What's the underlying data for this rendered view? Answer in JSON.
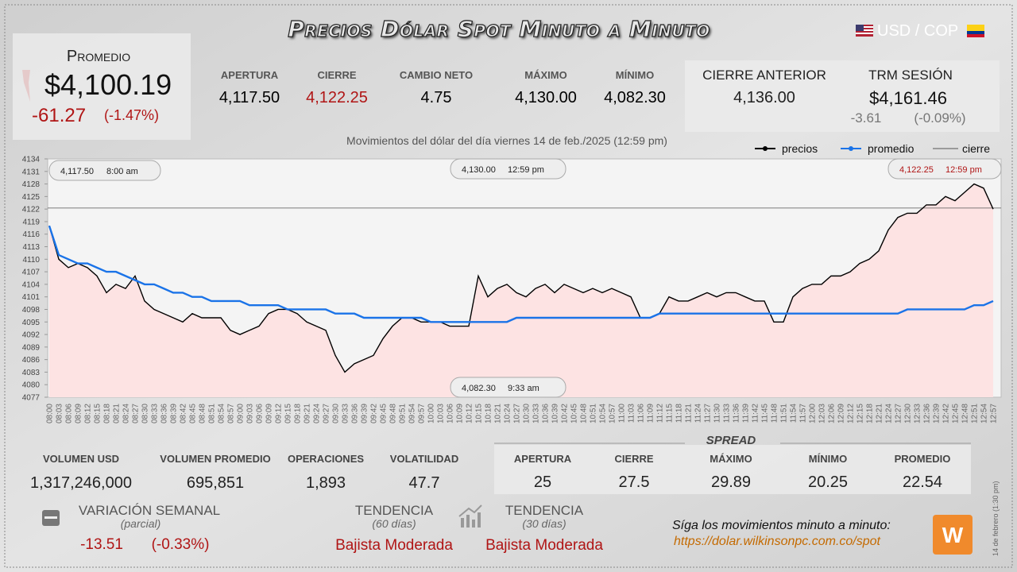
{
  "header": {
    "title": "Precios Dólar Spot Minuto a Minuto",
    "pair": "USD / COP"
  },
  "promedio": {
    "label": "Promedio",
    "value": "$4,100.19",
    "change": "-61.27",
    "change_pct": "(-1.47%)"
  },
  "session": [
    {
      "label": "APERTURA",
      "value": "4,117.50"
    },
    {
      "label": "CIERRE",
      "value": "4,122.25"
    },
    {
      "label": "CAMBIO NETO",
      "value": "4.75"
    },
    {
      "label": "MÁXIMO",
      "value": "4,130.00"
    },
    {
      "label": "MÍNIMO",
      "value": "4,082.30"
    }
  ],
  "previous": {
    "label": "CIERRE ANTERIOR",
    "value": "4,136.00"
  },
  "trm": {
    "label": "TRM SESIÓN",
    "value": "$4,161.46",
    "change": "-3.61",
    "change_pct": "(-0.09%)"
  },
  "chart_data": {
    "type": "line",
    "subtitle": "Movimientos del dólar del día viernes 14 de feb./2025 (12:59 pm)",
    "categories": [
      "08:00",
      "08:03",
      "08:06",
      "08:09",
      "08:12",
      "08:15",
      "08:18",
      "08:21",
      "08:24",
      "08:27",
      "08:30",
      "08:33",
      "08:36",
      "08:39",
      "08:42",
      "08:45",
      "08:48",
      "08:51",
      "08:54",
      "08:57",
      "09:00",
      "09:03",
      "09:06",
      "09:09",
      "09:12",
      "09:15",
      "09:18",
      "09:21",
      "09:24",
      "09:27",
      "09:30",
      "09:33",
      "09:36",
      "09:39",
      "09:42",
      "09:45",
      "09:48",
      "09:51",
      "09:54",
      "09:57",
      "10:00",
      "10:03",
      "10:06",
      "10:09",
      "10:12",
      "10:15",
      "10:18",
      "10:21",
      "10:24",
      "10:27",
      "10:30",
      "10:33",
      "10:36",
      "10:39",
      "10:42",
      "10:45",
      "10:48",
      "10:51",
      "10:54",
      "10:57",
      "11:00",
      "11:03",
      "11:06",
      "11:09",
      "11:12",
      "11:15",
      "11:18",
      "11:21",
      "11:24",
      "11:27",
      "11:30",
      "11:33",
      "11:36",
      "11:39",
      "11:42",
      "11:45",
      "11:48",
      "11:51",
      "11:54",
      "11:57",
      "12:00",
      "12:03",
      "12:06",
      "12:09",
      "12:12",
      "12:15",
      "12:18",
      "12:21",
      "12:24",
      "12:27",
      "12:30",
      "12:33",
      "12:36",
      "12:39",
      "12:42",
      "12:45",
      "12:48",
      "12:51",
      "12:54",
      "12:57"
    ],
    "series": [
      {
        "name": "precios",
        "color": "#000000",
        "values": [
          4118,
          4110,
          4108,
          4109,
          4108,
          4106,
          4102,
          4104,
          4103,
          4106,
          4100,
          4098,
          4097,
          4096,
          4095,
          4097,
          4096,
          4096,
          4096,
          4093,
          4092,
          4093,
          4094,
          4097,
          4098,
          4098,
          4097,
          4095,
          4094,
          4093,
          4087,
          4083,
          4085,
          4086,
          4087,
          4091,
          4094,
          4096,
          4096,
          4095,
          4095,
          4095,
          4094,
          4094,
          4094,
          4106,
          4101,
          4103,
          4104,
          4102,
          4101,
          4103,
          4104,
          4102,
          4104,
          4103,
          4102,
          4103,
          4102,
          4103,
          4102,
          4101,
          4096,
          4096,
          4097,
          4101,
          4100,
          4100,
          4101,
          4102,
          4101,
          4102,
          4102,
          4101,
          4100,
          4100,
          4095,
          4095,
          4101,
          4103,
          4104,
          4104,
          4106,
          4106,
          4107,
          4109,
          4110,
          4112,
          4117,
          4120,
          4121,
          4121,
          4123,
          4123,
          4125,
          4124,
          4126,
          4128,
          4127,
          4122
        ]
      },
      {
        "name": "promedio",
        "color": "#1a73e8",
        "values": [
          4118,
          4111,
          4110,
          4109,
          4109,
          4108,
          4107,
          4107,
          4106,
          4105,
          4104,
          4104,
          4103,
          4102,
          4102,
          4101,
          4101,
          4100,
          4100,
          4100,
          4100,
          4099,
          4099,
          4099,
          4099,
          4098,
          4098,
          4098,
          4098,
          4098,
          4097,
          4097,
          4097,
          4096,
          4096,
          4096,
          4096,
          4096,
          4096,
          4096,
          4095,
          4095,
          4095,
          4095,
          4095,
          4095,
          4095,
          4095,
          4095,
          4096,
          4096,
          4096,
          4096,
          4096,
          4096,
          4096,
          4096,
          4096,
          4096,
          4096,
          4096,
          4096,
          4096,
          4096,
          4097,
          4097,
          4097,
          4097,
          4097,
          4097,
          4097,
          4097,
          4097,
          4097,
          4097,
          4097,
          4097,
          4097,
          4097,
          4097,
          4097,
          4097,
          4097,
          4097,
          4097,
          4097,
          4097,
          4097,
          4097,
          4097,
          4098,
          4098,
          4098,
          4098,
          4098,
          4098,
          4098,
          4099,
          4099,
          4100
        ]
      }
    ],
    "reference_line": {
      "name": "cierre",
      "value": 4122.25,
      "color": "#555555"
    },
    "ylim": [
      4077,
      4134
    ],
    "yticks": [
      4077,
      4080,
      4083,
      4086,
      4089,
      4092,
      4095,
      4098,
      4101,
      4104,
      4107,
      4110,
      4113,
      4116,
      4119,
      4122,
      4125,
      4128,
      4131,
      4134
    ],
    "annotations": [
      {
        "text": "4,117.50",
        "time": "8:00 am"
      },
      {
        "text": "4,130.00",
        "time": "12:59 pm"
      },
      {
        "text": "4,122.25",
        "time": "12:59 pm"
      },
      {
        "text": "4,082.30",
        "time": "9:33 am"
      }
    ],
    "area_color": "#fde3e3"
  },
  "volume": [
    {
      "label": "VOLUMEN USD",
      "value": "1,317,246,000"
    },
    {
      "label": "VOLUMEN PROMEDIO",
      "value": "695,851"
    },
    {
      "label": "OPERACIONES",
      "value": "1,893"
    },
    {
      "label": "VOLATILIDAD",
      "value": "47.7"
    }
  ],
  "spread": {
    "title": "SPREAD",
    "items": [
      {
        "label": "APERTURA",
        "value": "25"
      },
      {
        "label": "CIERRE",
        "value": "27.5"
      },
      {
        "label": "MÁXIMO",
        "value": "29.89"
      },
      {
        "label": "MÍNIMO",
        "value": "20.25"
      },
      {
        "label": "PROMEDIO",
        "value": "22.54"
      }
    ]
  },
  "weekly": {
    "label": "VARIACIÓN SEMANAL",
    "sub": "(parcial)",
    "change": "-13.51",
    "change_pct": "(-0.33%)"
  },
  "trend": [
    {
      "label": "TENDENCIA",
      "sub": "(60 días)",
      "value": "Bajista Moderada"
    },
    {
      "label": "TENDENCIA",
      "sub": "(30 días)",
      "value": "Bajista Moderada"
    }
  ],
  "footer": {
    "cta": "Síga los movimientos minuto a minuto:",
    "url": "https://dolar.wilkinsonpc.com.co/spot",
    "stamp": "14 de febrero (1:30 pm)"
  }
}
